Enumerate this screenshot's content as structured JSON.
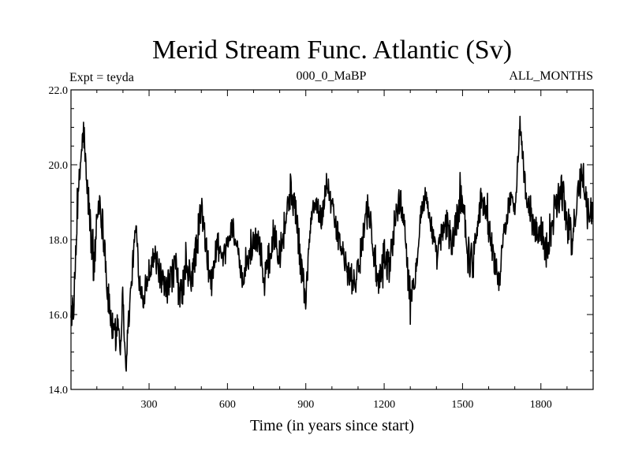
{
  "chart_data": {
    "type": "line",
    "title": "Merid Stream Func. Atlantic (Sv)",
    "experiment_label": "Expt = teyda",
    "run_label": "000_0_MaBP",
    "period_label": "ALL_MONTHS",
    "xlabel": "Time (in years since start)",
    "ylabel": "",
    "xlim": [
      1,
      2000
    ],
    "ylim": [
      14.0,
      22.0
    ],
    "x_ticks": [
      {
        "value": 300,
        "label": "300"
      },
      {
        "value": 600,
        "label": "600"
      },
      {
        "value": 900,
        "label": "900"
      },
      {
        "value": 1200,
        "label": "1200"
      },
      {
        "value": 1500,
        "label": "1500"
      },
      {
        "value": 1800,
        "label": "1800"
      }
    ],
    "y_ticks": [
      {
        "value": 14.0,
        "label": "14.0"
      },
      {
        "value": 16.0,
        "label": "16.0"
      },
      {
        "value": 18.0,
        "label": "18.0"
      },
      {
        "value": 20.0,
        "label": "20.0"
      },
      {
        "value": 22.0,
        "label": "22.0"
      }
    ],
    "series": [
      {
        "name": "Merid Stream Func. Atlantic",
        "color": "#000000",
        "x": [
          1,
          10,
          20,
          30,
          40,
          50,
          60,
          70,
          80,
          90,
          100,
          110,
          120,
          130,
          140,
          150,
          160,
          170,
          180,
          190,
          200,
          210,
          220,
          230,
          240,
          250,
          260,
          280,
          300,
          320,
          340,
          360,
          380,
          400,
          420,
          440,
          460,
          480,
          500,
          520,
          540,
          560,
          580,
          600,
          620,
          640,
          660,
          680,
          700,
          720,
          740,
          760,
          780,
          800,
          820,
          840,
          860,
          880,
          900,
          920,
          940,
          960,
          980,
          1000,
          1020,
          1040,
          1060,
          1080,
          1100,
          1120,
          1140,
          1160,
          1180,
          1200,
          1220,
          1240,
          1260,
          1280,
          1300,
          1320,
          1340,
          1360,
          1380,
          1400,
          1420,
          1440,
          1460,
          1480,
          1500,
          1520,
          1540,
          1560,
          1580,
          1600,
          1620,
          1640,
          1660,
          1680,
          1700,
          1720,
          1740,
          1760,
          1780,
          1800,
          1820,
          1840,
          1860,
          1880,
          1900,
          1920,
          1940,
          1960,
          1980,
          2000
        ],
        "values": [
          16.2,
          15.7,
          17.9,
          19.2,
          20.3,
          20.9,
          19.5,
          18.9,
          17.8,
          17.2,
          18.6,
          19.1,
          18.5,
          17.9,
          16.6,
          16.1,
          15.6,
          15.3,
          15.9,
          15.2,
          16.6,
          14.5,
          15.7,
          16.6,
          17.6,
          18.4,
          17.0,
          16.4,
          17.2,
          17.6,
          17.1,
          16.6,
          16.9,
          17.3,
          16.4,
          17.2,
          16.9,
          17.7,
          18.9,
          17.6,
          16.8,
          18.0,
          17.3,
          17.9,
          18.4,
          17.6,
          16.8,
          17.5,
          17.9,
          18.1,
          16.9,
          17.5,
          18.2,
          17.7,
          18.4,
          19.3,
          18.9,
          17.4,
          16.4,
          18.6,
          19.0,
          18.5,
          19.6,
          18.9,
          18.2,
          17.7,
          17.1,
          16.9,
          17.0,
          18.3,
          18.9,
          17.7,
          16.6,
          17.6,
          17.2,
          18.5,
          19.1,
          18.3,
          16.3,
          17.1,
          18.7,
          19.2,
          18.4,
          17.5,
          18.1,
          18.4,
          17.9,
          18.6,
          19.3,
          17.6,
          17.4,
          18.8,
          19.1,
          18.3,
          17.5,
          16.9,
          18.2,
          19.1,
          18.8,
          21.1,
          19.4,
          18.6,
          18.2,
          18.3,
          17.7,
          18.3,
          19.1,
          19.3,
          18.5,
          17.9,
          19.2,
          19.8,
          18.9,
          18.7
        ]
      }
    ]
  }
}
